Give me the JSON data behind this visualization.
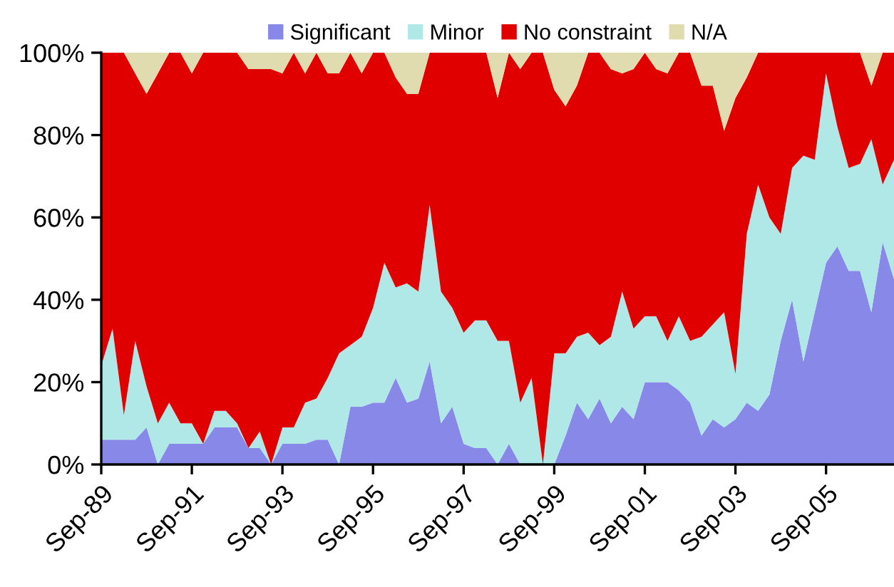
{
  "chart_data": {
    "type": "area",
    "stacked": true,
    "legend": "top",
    "categories": [
      "Sep-89",
      null,
      null,
      null,
      null,
      null,
      null,
      null,
      "Sep-91",
      null,
      null,
      null,
      null,
      null,
      null,
      null,
      "Sep-93",
      null,
      null,
      null,
      null,
      null,
      null,
      null,
      "Sep-95",
      null,
      null,
      null,
      null,
      null,
      null,
      null,
      "Sep-97",
      null,
      null,
      null,
      null,
      null,
      null,
      null,
      "Sep-99",
      null,
      null,
      null,
      null,
      null,
      null,
      null,
      "Sep-01",
      null,
      null,
      null,
      null,
      null,
      null,
      null,
      "Sep-03",
      null,
      null,
      null,
      null,
      null,
      null,
      null,
      "Sep-05",
      null,
      null,
      null,
      null,
      null,
      null
    ],
    "ylim": [
      0,
      100
    ],
    "yticks": [
      {
        "value": 0,
        "label": "0%"
      },
      {
        "value": 20,
        "label": "20%"
      },
      {
        "value": 40,
        "label": "40%"
      },
      {
        "value": 60,
        "label": "60%"
      },
      {
        "value": 80,
        "label": "80%"
      },
      {
        "value": 100,
        "label": "100%"
      }
    ],
    "series": [
      {
        "name": "Significant",
        "color": "#8888e8",
        "values": [
          6,
          6,
          6,
          6,
          9,
          0,
          5,
          5,
          5,
          5,
          9,
          9,
          9,
          4,
          4,
          0,
          5,
          5,
          5,
          6,
          6,
          0,
          14,
          14,
          15,
          15,
          21,
          15,
          16,
          25,
          10,
          14,
          5,
          4,
          4,
          0,
          5,
          0,
          0,
          0,
          0,
          7,
          15,
          11,
          16,
          10,
          14,
          11,
          20,
          20,
          20,
          18,
          15,
          7,
          11,
          9,
          11,
          15,
          13,
          17,
          30,
          40,
          25,
          37,
          49,
          53,
          47,
          47,
          37,
          54,
          45
        ]
      },
      {
        "name": "Minor",
        "color": "#b0e8e8",
        "values": [
          18,
          27,
          6,
          24,
          10,
          10,
          10,
          5,
          5,
          0,
          4,
          4,
          1,
          0,
          4,
          0,
          4,
          4,
          10,
          10,
          15,
          27,
          15,
          17,
          23,
          34,
          22,
          29,
          26,
          38,
          32,
          24,
          27,
          31,
          31,
          30,
          25,
          15,
          21,
          0,
          27,
          20,
          16,
          21,
          13,
          21,
          28,
          22,
          16,
          16,
          10,
          18,
          15,
          24,
          23,
          28,
          11,
          41,
          55,
          43,
          26,
          32,
          50,
          37,
          46,
          29,
          25,
          26,
          42,
          14,
          29
        ]
      },
      {
        "name": "No constraint",
        "color": "#e00000",
        "values": [
          76,
          67,
          88,
          65,
          71,
          85,
          85,
          90,
          85,
          95,
          87,
          87,
          90,
          92,
          88,
          96,
          86,
          91,
          80,
          84,
          74,
          68,
          71,
          64,
          62,
          51,
          51,
          46,
          48,
          37,
          58,
          62,
          68,
          65,
          65,
          59,
          70,
          81,
          79,
          100,
          64,
          60,
          61,
          68,
          71,
          65,
          53,
          63,
          64,
          60,
          65,
          64,
          70,
          61,
          58,
          44,
          67,
          38,
          32,
          40,
          44,
          28,
          25,
          26,
          5,
          18,
          28,
          27,
          13,
          32,
          26
        ]
      },
      {
        "name": "N/A",
        "color": "#e0dcb0",
        "values": [
          0,
          0,
          0,
          5,
          10,
          5,
          0,
          0,
          5,
          0,
          0,
          0,
          0,
          4,
          4,
          4,
          5,
          0,
          5,
          0,
          5,
          5,
          0,
          5,
          0,
          0,
          6,
          10,
          10,
          0,
          0,
          0,
          0,
          0,
          0,
          11,
          0,
          4,
          0,
          0,
          9,
          13,
          8,
          0,
          0,
          4,
          5,
          4,
          0,
          4,
          5,
          0,
          0,
          8,
          8,
          19,
          11,
          6,
          0,
          0,
          0,
          0,
          0,
          0,
          0,
          0,
          0,
          0,
          8,
          0,
          0
        ]
      }
    ]
  }
}
